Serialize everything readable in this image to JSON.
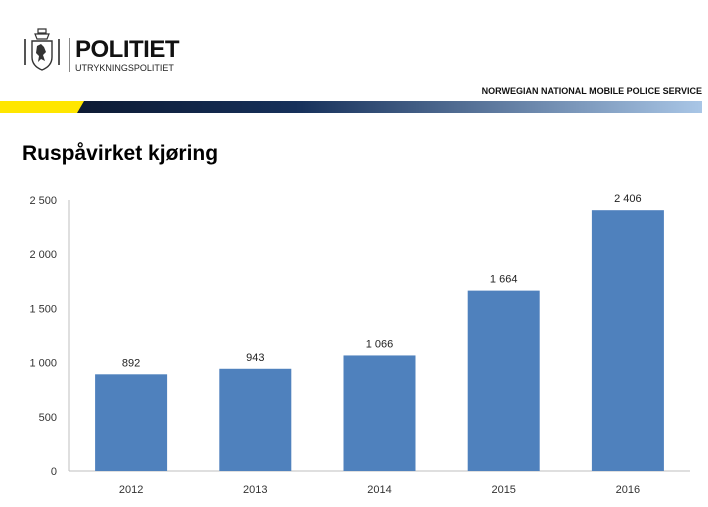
{
  "header": {
    "brand": "POLITIET",
    "sub_brand": "UTRYKNINGSPOLITIET",
    "service": "NORWEGIAN NATIONAL MOBILE POLICE SERVICE",
    "logo_icon": "norwegian-police-crest-icon"
  },
  "slide": {
    "title": "Ruspåvirket kjøring"
  },
  "colors": {
    "bar": "#4f81bd",
    "band_yellow": "#ffe600",
    "band_dark": "#0d1a33",
    "band_light": "#a9c6e6"
  },
  "chart_data": {
    "type": "bar",
    "categories": [
      "2012",
      "2013",
      "2014",
      "2015",
      "2016"
    ],
    "values": [
      892,
      943,
      1066,
      1664,
      2406
    ],
    "data_labels": [
      "892",
      "943",
      "1 066",
      "1 664",
      "2 406"
    ],
    "ylim": [
      0,
      2500
    ],
    "yticks": [
      0,
      500,
      1000,
      1500,
      2000,
      2500
    ],
    "ytick_labels": [
      "0",
      "500",
      "1 000",
      "1 500",
      "2 000",
      "2 500"
    ],
    "grid": false,
    "legend": "none"
  }
}
